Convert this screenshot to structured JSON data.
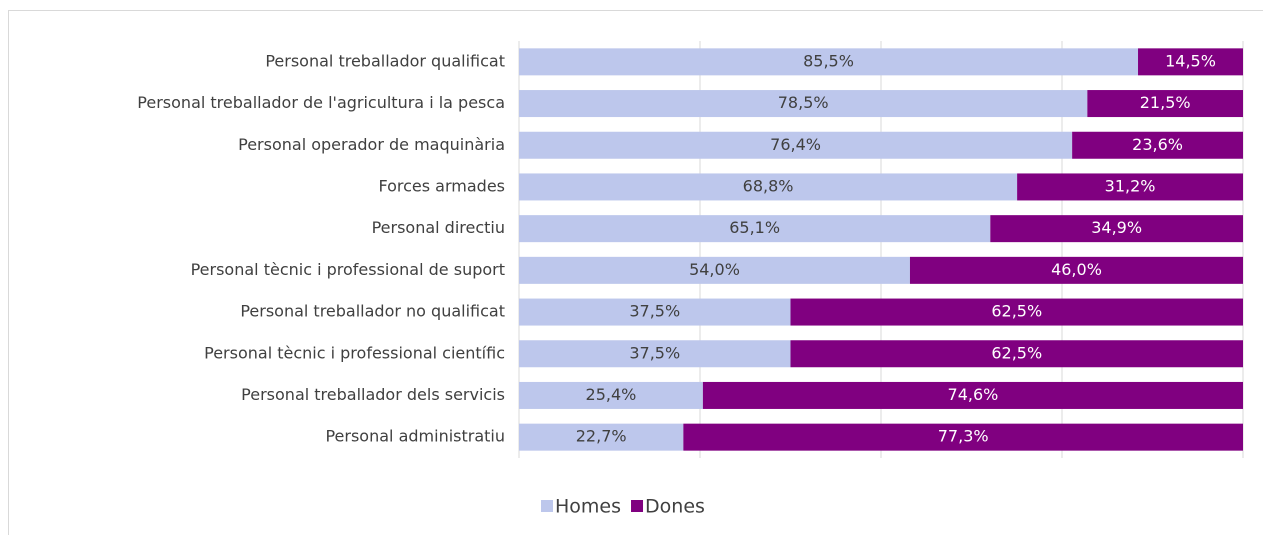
{
  "chart_data": {
    "type": "stacked_bar_horizontal",
    "categories": [
      "Personal treballador qualificat",
      "Personal treballador de l'agricultura i la pesca",
      "Personal operador de maquinària",
      "Forces armades",
      "Personal directiu",
      "Personal tècnic i professional de suport",
      "Personal treballador no qualificat",
      "Personal tècnic i professional científic",
      "Personal treballador dels servicis",
      "Personal administratiu"
    ],
    "series": [
      {
        "name": "Homes",
        "color": "#bdc7ec",
        "values": [
          85.5,
          78.5,
          76.4,
          68.8,
          65.1,
          54.0,
          37.5,
          37.5,
          25.4,
          22.7
        ],
        "value_labels": [
          "85,5%",
          "78,5%",
          "76,4%",
          "68,8%",
          "65,1%",
          "54,0%",
          "37,5%",
          "37,5%",
          "25,4%",
          "22,7%"
        ]
      },
      {
        "name": "Dones",
        "color": "#800080",
        "values": [
          14.5,
          21.5,
          23.6,
          31.2,
          34.9,
          46.0,
          62.5,
          62.5,
          74.6,
          77.3
        ],
        "value_labels": [
          "14,5%",
          "21,5%",
          "23,6%",
          "31,2%",
          "34,9%",
          "46,0%",
          "62,5%",
          "62,5%",
          "74,6%",
          "77,3%"
        ]
      }
    ],
    "xlim": [
      0,
      100
    ],
    "xticks": [
      0,
      25,
      50,
      75,
      100
    ],
    "grid": true,
    "legend": "bottom"
  }
}
